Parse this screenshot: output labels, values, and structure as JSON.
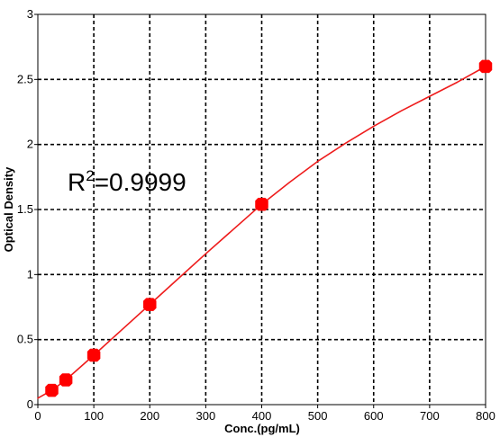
{
  "chart_data": {
    "type": "scatter",
    "title": "",
    "xlabel": "Conc.(pg/mL)",
    "ylabel": "Optical Density",
    "xlim": [
      0,
      800
    ],
    "ylim": [
      0,
      3
    ],
    "x_ticks": [
      "0",
      "100",
      "200",
      "300",
      "400",
      "500",
      "600",
      "700",
      "800"
    ],
    "y_ticks": [
      "0",
      "0.5",
      "1",
      "1.5",
      "2",
      "2.5",
      "3"
    ],
    "grid": true,
    "annotation": {
      "base": "R",
      "sup": "2",
      "value": "=0.9999"
    },
    "series": [
      {
        "points": [
          {
            "x": 25,
            "y": 0.11
          },
          {
            "x": 50,
            "y": 0.19
          },
          {
            "x": 100,
            "y": 0.38
          },
          {
            "x": 200,
            "y": 0.77
          },
          {
            "x": 400,
            "y": 1.54
          },
          {
            "x": 800,
            "y": 2.6
          }
        ],
        "fit_curve": [
          {
            "x": 0,
            "y": 0.05
          },
          {
            "x": 25,
            "y": 0.11
          },
          {
            "x": 50,
            "y": 0.19
          },
          {
            "x": 100,
            "y": 0.38
          },
          {
            "x": 150,
            "y": 0.575
          },
          {
            "x": 200,
            "y": 0.77
          },
          {
            "x": 250,
            "y": 0.965
          },
          {
            "x": 300,
            "y": 1.16
          },
          {
            "x": 350,
            "y": 1.35
          },
          {
            "x": 400,
            "y": 1.54
          },
          {
            "x": 450,
            "y": 1.71
          },
          {
            "x": 500,
            "y": 1.87
          },
          {
            "x": 550,
            "y": 2.01
          },
          {
            "x": 600,
            "y": 2.14
          },
          {
            "x": 650,
            "y": 2.26
          },
          {
            "x": 700,
            "y": 2.37
          },
          {
            "x": 750,
            "y": 2.48
          },
          {
            "x": 800,
            "y": 2.6
          }
        ],
        "color": "#ff0000",
        "line_color": "#ee1c1c"
      }
    ]
  }
}
